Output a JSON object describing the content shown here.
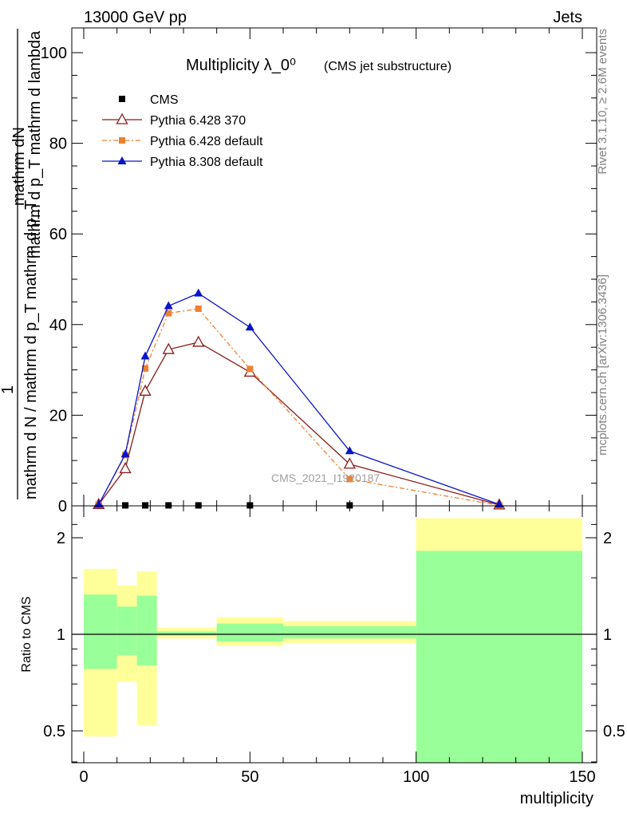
{
  "header": {
    "left": "13000 GeV pp",
    "right": "Jets"
  },
  "side_labels": {
    "rivet": "Rivet 3.1.10, ≥ 2.6M events",
    "mcplots": "mcplots.cern.ch [arXiv:1306.3436]"
  },
  "watermark": "CMS_2021_I1920187",
  "chart_data": [
    {
      "type": "line",
      "title": "Multiplicity λ_0⁰",
      "subtitle": "(CMS jet substructure)",
      "ylabel_top": "mathrm dN",
      "ylabel_mid": "mathrm d p_T mathrm d lambda",
      "ylabel_frac_num": "1",
      "ylabel_bottom": "mathrm d N / mathrm d p_T mathrm d p_T",
      "xlim": [
        -5,
        150
      ],
      "ylim": [
        0,
        105
      ],
      "yticks": [
        0,
        20,
        40,
        60,
        80,
        100
      ],
      "xticks": [
        0,
        50,
        100,
        150
      ],
      "legend_position": "top-left",
      "series": [
        {
          "name": "CMS",
          "color": "#000000",
          "marker": "square",
          "x": [
            4.5,
            12.5,
            18.5,
            25.5,
            34.5,
            50,
            80,
            125
          ],
          "y": [
            0.1,
            0.1,
            0.1,
            0.1,
            0.1,
            0.1,
            0.1,
            0.05
          ]
        },
        {
          "name": "Pythia 6.428 370",
          "color": "#8b1a1a",
          "marker": "triangle-open",
          "dash": "",
          "x": [
            4.5,
            12.5,
            18.5,
            25.5,
            34.5,
            50,
            80,
            125
          ],
          "y": [
            0.3,
            8.2,
            25.3,
            34.5,
            36.1,
            29.5,
            9.2,
            0.2
          ]
        },
        {
          "name": "Pythia 6.428 default",
          "color": "#f08030",
          "marker": "square-filled",
          "dash": "6,3,2,3",
          "x": [
            4.5,
            12.5,
            18.5,
            25.5,
            34.5,
            50,
            80,
            125
          ],
          "y": [
            0.3,
            11.2,
            30.3,
            42.5,
            43.5,
            30.2,
            5.9,
            0.1
          ]
        },
        {
          "name": "Pythia 8.308 default",
          "color": "#0a14c8",
          "marker": "triangle-filled",
          "dash": "",
          "x": [
            4.5,
            12.5,
            18.5,
            25.5,
            34.5,
            50,
            80,
            125
          ],
          "y": [
            0.3,
            11.4,
            33.0,
            44.1,
            46.9,
            39.4,
            12.1,
            0.3
          ]
        }
      ]
    },
    {
      "type": "area",
      "ylabel": "Ratio to CMS",
      "xlabel": "multiplicity",
      "xlim": [
        -5,
        150
      ],
      "ylim": [
        0.35,
        2.3
      ],
      "yticks": [
        0.5,
        1,
        2
      ],
      "reference_line": 1,
      "bands": [
        {
          "x": [
            0,
            10
          ],
          "inner": [
            0.78,
            1.33
          ],
          "outer": [
            0.48,
            1.6
          ]
        },
        {
          "x": [
            10,
            16
          ],
          "inner": [
            0.86,
            1.22
          ],
          "outer": [
            0.71,
            1.42
          ]
        },
        {
          "x": [
            16,
            22
          ],
          "inner": [
            0.8,
            1.32
          ],
          "outer": [
            0.52,
            1.57
          ]
        },
        {
          "x": [
            22,
            40
          ],
          "inner": [
            0.99,
            1.02
          ],
          "outer": [
            0.97,
            1.05
          ]
        },
        {
          "x": [
            40,
            60
          ],
          "inner": [
            0.95,
            1.08
          ],
          "outer": [
            0.92,
            1.13
          ]
        },
        {
          "x": [
            60,
            100
          ],
          "inner": [
            0.97,
            1.06
          ],
          "outer": [
            0.94,
            1.1
          ]
        },
        {
          "x": [
            100,
            150
          ],
          "inner": [
            0.0,
            1.82
          ],
          "outer": [
            0.0,
            2.3
          ]
        }
      ],
      "inner_color": "#99ff99",
      "outer_color": "#ffff99"
    }
  ]
}
